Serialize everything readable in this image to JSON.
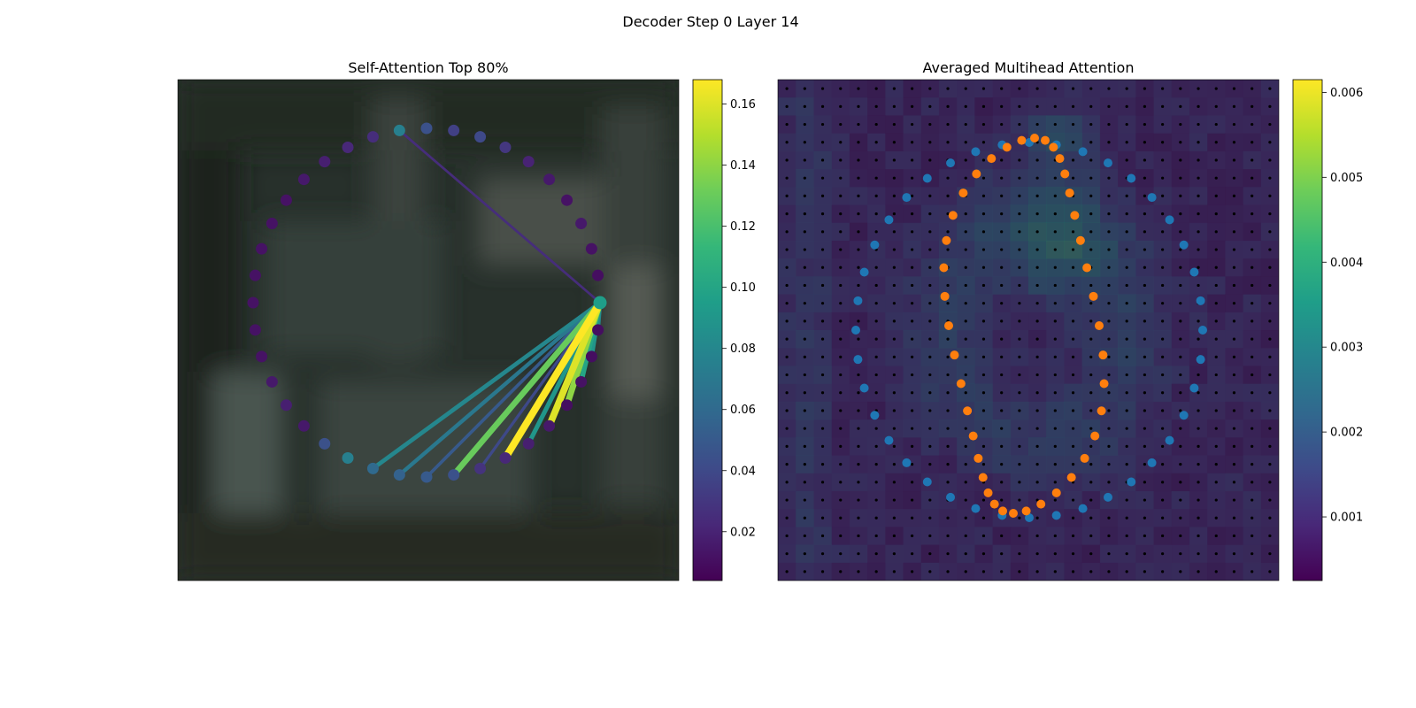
{
  "figure": {
    "suptitle": "Decoder Step 0 Layer 14"
  },
  "colormap_viridis": [
    "#440154",
    "#482878",
    "#3e4a89",
    "#31688e",
    "#26828e",
    "#1f9e89",
    "#35b779",
    "#6dcd59",
    "#b4de2c",
    "#fde725"
  ],
  "colors": {
    "inner_points": "#1f77b4",
    "outer_points": "#ff7f0e",
    "grid_dots": "#000000",
    "photo_base": "#27302b"
  },
  "chart_data": [
    {
      "type": "scatter",
      "title": "Self-Attention Top 80%",
      "background": "blurred photo of a dark room",
      "points_count": 40,
      "point_values": [
        0.095,
        0.01,
        0.01,
        0.012,
        0.01,
        0.015,
        0.018,
        0.022,
        0.028,
        0.045,
        0.05,
        0.055,
        0.06,
        0.075,
        0.045,
        0.015,
        0.018,
        0.015,
        0.012,
        0.012,
        0.012,
        0.012,
        0.012,
        0.012,
        0.012,
        0.015,
        0.018,
        0.022,
        0.025,
        0.075,
        0.045,
        0.035,
        0.04,
        0.03,
        0.02,
        0.015,
        0.012,
        0.015,
        0.012,
        0.01
      ],
      "source_index": 0,
      "attention_edges": [
        {
          "target": 1,
          "weight": 0.08
        },
        {
          "target": 2,
          "weight": 0.09
        },
        {
          "target": 3,
          "weight": 0.1
        },
        {
          "target": 4,
          "weight": 0.14
        },
        {
          "target": 5,
          "weight": 0.16
        },
        {
          "target": 6,
          "weight": 0.09
        },
        {
          "target": 7,
          "weight": 0.17
        },
        {
          "target": 8,
          "weight": 0.04
        },
        {
          "target": 9,
          "weight": 0.13
        },
        {
          "target": 10,
          "weight": 0.05
        },
        {
          "target": 11,
          "weight": 0.07
        },
        {
          "target": 12,
          "weight": 0.08
        },
        {
          "target": 29,
          "weight": 0.025
        }
      ],
      "colorbar": {
        "min": 0.004,
        "max": 0.168,
        "ticks": [
          "0.02",
          "0.04",
          "0.06",
          "0.08",
          "0.10",
          "0.12",
          "0.14",
          "0.16"
        ]
      }
    },
    {
      "type": "heatmap",
      "title": "Averaged Multihead Attention",
      "grid_rows": 28,
      "grid_cols": 28,
      "overlay_series": [
        {
          "color": "blue",
          "count": 40
        },
        {
          "color": "orange",
          "count": 40
        }
      ],
      "colorbar": {
        "min": 0.00025,
        "max": 0.00615,
        "ticks": [
          "0.001",
          "0.002",
          "0.003",
          "0.004",
          "0.005",
          "0.006"
        ]
      }
    }
  ]
}
